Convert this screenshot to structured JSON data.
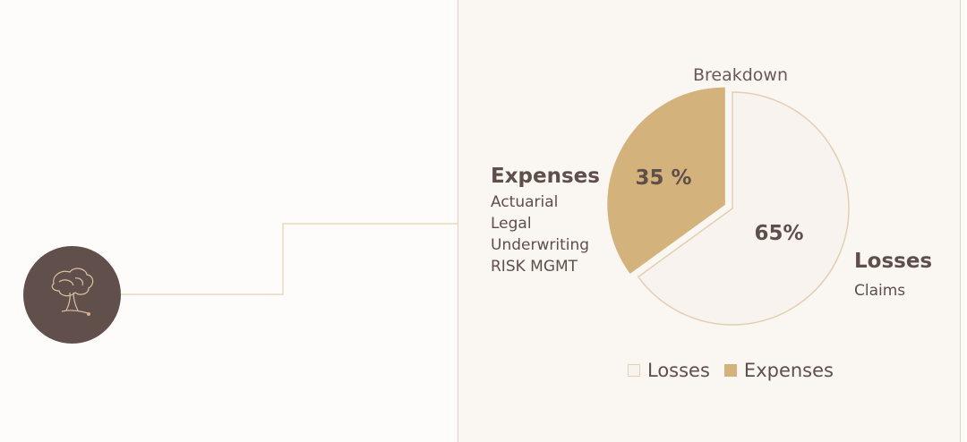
{
  "chart_data": {
    "type": "pie",
    "title": "Breakdown",
    "slices": [
      {
        "label": "Losses",
        "value": 65,
        "display": "65%",
        "color": "#f8f3ee",
        "stroke": "#e3cfb2"
      },
      {
        "label": "Expenses",
        "value": 35,
        "display": "35 %",
        "color": "#d4b27c",
        "stroke": "#d4b27c"
      }
    ],
    "annotations": {
      "expenses": {
        "title": "Expenses",
        "items": [
          "Actuarial",
          "Legal",
          "Underwriting",
          "RISK MGMT"
        ]
      },
      "losses": {
        "title": "Losses",
        "items": [
          "Claims"
        ]
      }
    },
    "legend": {
      "position": "bottom",
      "items": [
        "Losses",
        "Expenses"
      ]
    }
  },
  "logo": {
    "icon": "tree-logo-icon",
    "circle_color": "#614f4c",
    "line_color": "#e9d8c0"
  }
}
